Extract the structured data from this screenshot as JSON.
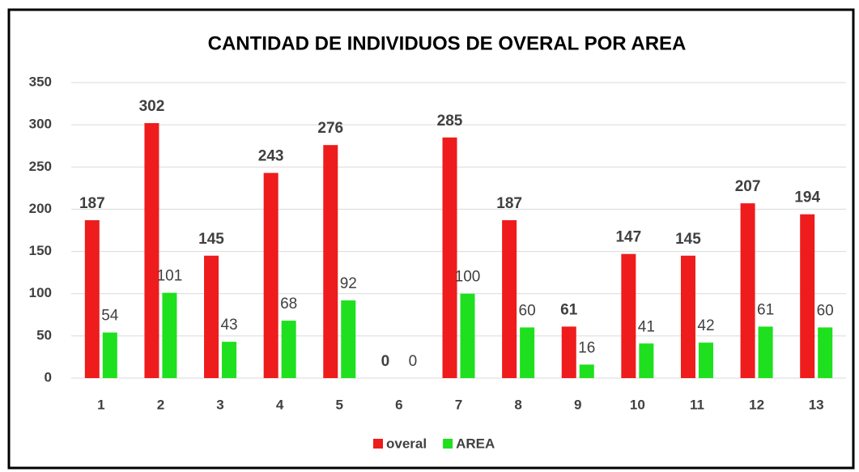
{
  "chart_data": {
    "type": "bar",
    "title": "CANTIDAD DE INDIVIDUOS DE OVERAL POR AREA",
    "categories": [
      "1",
      "2",
      "3",
      "4",
      "5",
      "6",
      "7",
      "8",
      "9",
      "10",
      "11",
      "12",
      "13"
    ],
    "series": [
      {
        "name": "overal",
        "color": "#ee1c1c",
        "values": [
          187,
          302,
          145,
          243,
          276,
          0,
          285,
          187,
          61,
          147,
          145,
          207,
          194
        ]
      },
      {
        "name": "AREA",
        "color": "#1ee01e",
        "values": [
          54,
          101,
          43,
          68,
          92,
          0,
          100,
          60,
          16,
          41,
          42,
          61,
          60
        ]
      }
    ],
    "ylim": [
      0,
      350
    ],
    "yticks": [
      0,
      50,
      100,
      150,
      200,
      250,
      300,
      350
    ],
    "grid": true,
    "legend": "bottom"
  }
}
